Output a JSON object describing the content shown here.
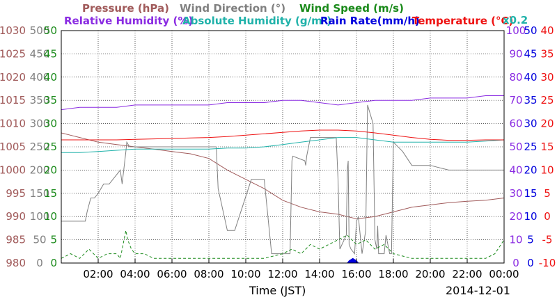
{
  "chart_data": {
    "type": "line",
    "date": "2014-12-01",
    "xlabel": "Time (JST)",
    "x_ticks": [
      "02:00",
      "04:00",
      "06:00",
      "08:00",
      "10:00",
      "12:00",
      "14:00",
      "16:00",
      "18:00",
      "20:00",
      "22:00",
      "00:00"
    ],
    "x_range_hours": [
      0,
      24
    ],
    "grid": true,
    "legend": {
      "row1": [
        {
          "key": "pressure",
          "label": "Pressure (hPa)",
          "color": "#a05a5a"
        },
        {
          "key": "wind_direction",
          "label": "Wind Direction (°)",
          "color": "#808080"
        },
        {
          "key": "wind_speed",
          "label": "Wind Speed (m/s)",
          "color": "#1a8a1a"
        }
      ],
      "row2": [
        {
          "key": "relative_humidity",
          "label": "Relative Humidity (%)",
          "color": "#8a2be2"
        },
        {
          "key": "absolute_humidity",
          "label": "Absolute Humidity (g/m³)",
          "color": "#20b2aa"
        },
        {
          "key": "rain_rate",
          "label": "Rain Rate(mm/h)",
          "color": "#0000dd"
        },
        {
          "key": "temperature",
          "label": "Temperature (°C)",
          "color": "#ee1111"
        }
      ],
      "scale_note": "x0.2"
    },
    "axes": {
      "pressure": {
        "ticks": [
          "1030",
          "1025",
          "1020",
          "1015",
          "1010",
          "1005",
          "1000",
          "995",
          "990",
          "985",
          "980"
        ],
        "ylim": [
          980,
          1030
        ],
        "color": "#a05a5a"
      },
      "wind_direction": {
        "ticks": [
          "500",
          "450",
          "400",
          "350",
          "300",
          "250",
          "200",
          "150",
          "100",
          "50",
          "0"
        ],
        "ylim": [
          0,
          500
        ],
        "color": "#808080"
      },
      "wind_speed": {
        "ticks": [
          "50",
          "45",
          "40",
          "35",
          "30",
          "25",
          "20",
          "15",
          "10",
          "5",
          "0"
        ],
        "ylim": [
          0,
          50
        ],
        "color": "#1a8a1a"
      },
      "relative_humidity": {
        "ticks": [
          "100",
          "90",
          "80",
          "70",
          "60",
          "50",
          "40",
          "30",
          "20",
          "10",
          "0"
        ],
        "ylim": [
          0,
          100
        ],
        "color": "#8a2be2"
      },
      "absolute_humidity": {
        "ticks": [
          "50",
          "45",
          "40",
          "35",
          "30",
          "25",
          "20",
          "15",
          "10",
          "5",
          "0"
        ],
        "ylim": [
          0,
          50
        ],
        "color": "#0000dd"
      },
      "temperature": {
        "ticks": [
          "40",
          "35",
          "30",
          "25",
          "20",
          "15",
          "10",
          "5",
          "0",
          "-5",
          "-10"
        ],
        "ylim": [
          -10,
          40
        ],
        "color": "#ee1111"
      }
    },
    "series": [
      {
        "key": "pressure",
        "name": "Pressure (hPa)",
        "color": "#a05a5a",
        "x": [
          0,
          0.5,
          1,
          2,
          3,
          4,
          5,
          6,
          7,
          8,
          9,
          10,
          11,
          12,
          13,
          14,
          15,
          15.5,
          16,
          17,
          18,
          19,
          20,
          21,
          22,
          23,
          24
        ],
        "y": [
          1008,
          1007.5,
          1007,
          1006,
          1005.5,
          1005,
          1004.5,
          1004,
          1003.5,
          1002.5,
          1000,
          998,
          996,
          993.5,
          992,
          991,
          990.5,
          990,
          989.5,
          990,
          991,
          992,
          992.5,
          993,
          993.3,
          993.5,
          994
        ]
      },
      {
        "key": "wind_direction",
        "name": "Wind Direction (°)",
        "color": "#808080",
        "x": [
          0,
          1.3,
          1.4,
          1.6,
          1.8,
          2,
          2.3,
          2.6,
          3.2,
          3.3,
          3.5,
          3.55,
          3.7,
          3.75,
          8.4,
          8.5,
          9,
          9.4,
          10.3,
          10.4,
          11,
          11.4,
          11.5,
          12.4,
          12.5,
          12.55,
          13.2,
          13.25,
          13.3,
          13.5,
          14.9,
          15,
          15.1,
          15.45,
          15.5,
          15.55,
          15.6,
          15.7,
          15.9,
          16,
          16.1,
          16.3,
          16.5,
          16.6,
          16.9,
          17,
          17.1,
          17.15,
          17.2,
          17.3,
          17.5,
          17.6,
          17.8,
          17.9,
          17.95,
          18,
          18.5,
          19,
          20,
          21,
          22,
          23,
          24
        ],
        "y": [
          90,
          90,
          110,
          140,
          140,
          150,
          170,
          170,
          200,
          170,
          240,
          260,
          250,
          250,
          250,
          160,
          70,
          70,
          180,
          180,
          180,
          20,
          20,
          20,
          220,
          230,
          220,
          210,
          230,
          270,
          270,
          180,
          30,
          60,
          200,
          220,
          40,
          30,
          20,
          90,
          100,
          20,
          70,
          340,
          300,
          50,
          30,
          80,
          20,
          20,
          20,
          60,
          20,
          20,
          150,
          260,
          240,
          210,
          210,
          200,
          200,
          200,
          200
        ]
      },
      {
        "key": "wind_speed",
        "name": "Wind Speed (m/s)",
        "color": "#1a8a1a",
        "dash": "4 3",
        "x": [
          0,
          0.5,
          1,
          1.5,
          2,
          2.5,
          3,
          3.2,
          3.5,
          3.6,
          3.8,
          4,
          4.5,
          5,
          6,
          7,
          8,
          9,
          10,
          11,
          12,
          12.5,
          13,
          13.5,
          14,
          14.5,
          15,
          15.5,
          16,
          16.5,
          17,
          17.5,
          18,
          19,
          20,
          21,
          22,
          23,
          23.5,
          24
        ],
        "y": [
          1,
          2,
          1,
          3,
          1,
          2,
          2,
          1,
          7,
          5,
          3,
          2,
          2,
          1,
          1,
          1,
          1,
          1,
          1,
          1,
          2,
          3,
          2,
          4,
          3,
          4,
          5,
          6,
          4,
          5,
          3,
          4,
          2,
          1,
          1,
          1,
          1,
          1,
          2,
          5
        ]
      },
      {
        "key": "relative_humidity",
        "name": "Relative Humidity (%)",
        "color": "#8a2be2",
        "axis": "relative_humidity",
        "x": [
          0,
          1,
          2,
          3,
          4,
          5,
          6,
          7,
          8,
          9,
          10,
          11,
          12,
          13,
          14,
          15,
          16,
          17,
          18,
          19,
          20,
          21,
          22,
          23,
          24
        ],
        "y": [
          66,
          67,
          67,
          67,
          68,
          68,
          68,
          68,
          68,
          69,
          69,
          69,
          70,
          70,
          69,
          68,
          69,
          70,
          70,
          70,
          71,
          71,
          71,
          72,
          72
        ]
      },
      {
        "key": "absolute_humidity",
        "name": "Absolute Humidity (g/m³)",
        "color": "#20b2aa",
        "axis": "relative_humidity",
        "scale": 0.2,
        "x": [
          0,
          1,
          2,
          3,
          4,
          5,
          6,
          7,
          8,
          9,
          10,
          11,
          12,
          13,
          14,
          15,
          16,
          17,
          18,
          19,
          20,
          21,
          22,
          23,
          24
        ],
        "y": [
          47.5,
          47.5,
          48,
          48.5,
          49,
          49,
          49,
          49,
          49,
          49.5,
          49.5,
          50,
          51,
          52,
          53,
          54,
          54,
          53,
          52,
          52,
          52,
          52,
          52,
          52.5,
          53
        ]
      },
      {
        "key": "rain_rate",
        "name": "Rain Rate(mm/h)",
        "color": "#0000dd",
        "axis": "absolute_humidity",
        "x": [
          0,
          15.5,
          15.6,
          15.8,
          16.0,
          16.1,
          24
        ],
        "y": [
          0,
          0,
          0.5,
          1,
          0.5,
          0,
          0
        ]
      },
      {
        "key": "temperature",
        "name": "Temperature (°C)",
        "color": "#ee1111",
        "axis": "temperature",
        "x": [
          0,
          1,
          2,
          3,
          4,
          5,
          6,
          7,
          8,
          9,
          10,
          11,
          12,
          13,
          14,
          15,
          16,
          17,
          18,
          19,
          20,
          21,
          22,
          23,
          24
        ],
        "y": [
          16.5,
          16.5,
          16.5,
          16.5,
          16.6,
          16.7,
          16.8,
          16.9,
          17.0,
          17.2,
          17.5,
          17.8,
          18.1,
          18.4,
          18.6,
          18.6,
          18.4,
          18.0,
          17.5,
          17.0,
          16.6,
          16.4,
          16.4,
          16.5,
          16.5
        ]
      }
    ]
  }
}
